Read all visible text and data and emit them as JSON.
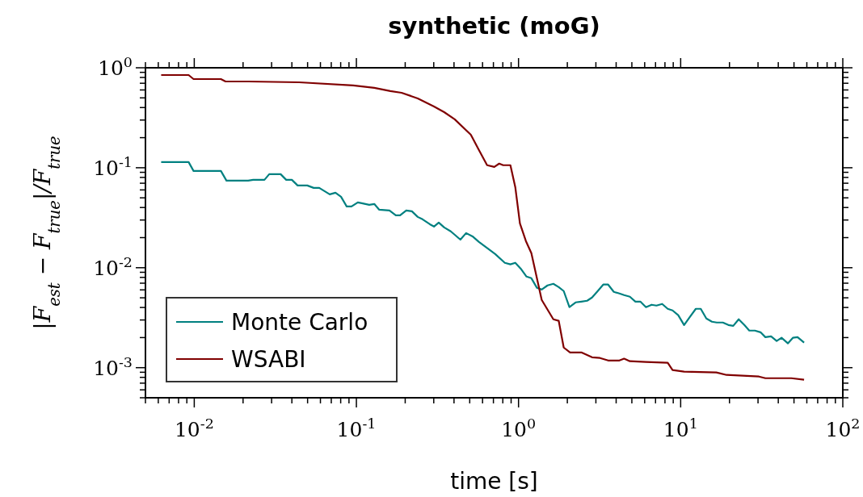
{
  "chart_data": {
    "type": "line",
    "title": "synthetic (moG)",
    "xlabel": "time [s]",
    "ylabel": "|F$_{est}$ − F$_{true}$|/F$_{true}$",
    "log": "xy",
    "grid": false,
    "legend": "bottom left",
    "line_style": "solid",
    "marker": "none",
    "xlim": [
      0.005,
      100
    ],
    "ylim": [
      0.0005,
      1
    ],
    "xticks": [
      {
        "value": 0.005,
        "label": null
      },
      {
        "value": 0.006,
        "label": null
      },
      {
        "value": 0.007,
        "label": null
      },
      {
        "value": 0.008,
        "label": null
      },
      {
        "value": 0.009,
        "label": null
      },
      {
        "value": 0.01,
        "label": "10$^{-2}$"
      },
      {
        "value": 0.02,
        "label": null
      },
      {
        "value": 0.03,
        "label": null
      },
      {
        "value": 0.04,
        "label": null
      },
      {
        "value": 0.05,
        "label": null
      },
      {
        "value": 0.06,
        "label": null
      },
      {
        "value": 0.07,
        "label": null
      },
      {
        "value": 0.08,
        "label": null
      },
      {
        "value": 0.09,
        "label": null
      },
      {
        "value": 0.1,
        "label": "10$^{-1}$"
      },
      {
        "value": 0.2,
        "label": null
      },
      {
        "value": 0.3,
        "label": null
      },
      {
        "value": 0.4,
        "label": null
      },
      {
        "value": 0.5,
        "label": null
      },
      {
        "value": 0.6,
        "label": null
      },
      {
        "value": 0.7,
        "label": null
      },
      {
        "value": 0.8,
        "label": null
      },
      {
        "value": 0.9,
        "label": null
      },
      {
        "value": 1,
        "label": "10$^{0}$"
      },
      {
        "value": 2,
        "label": null
      },
      {
        "value": 3,
        "label": null
      },
      {
        "value": 4,
        "label": null
      },
      {
        "value": 5,
        "label": null
      },
      {
        "value": 6,
        "label": null
      },
      {
        "value": 7,
        "label": null
      },
      {
        "value": 8,
        "label": null
      },
      {
        "value": 9,
        "label": null
      },
      {
        "value": 10,
        "label": "10$^{1}$"
      },
      {
        "value": 20,
        "label": null
      },
      {
        "value": 30,
        "label": null
      },
      {
        "value": 40,
        "label": null
      },
      {
        "value": 50,
        "label": null
      },
      {
        "value": 60,
        "label": null
      },
      {
        "value": 70,
        "label": null
      },
      {
        "value": 80,
        "label": null
      },
      {
        "value": 90,
        "label": null
      },
      {
        "value": 100,
        "label": "10$^{2}$"
      }
    ],
    "yticks": [
      {
        "value": 0.0005,
        "label": null
      },
      {
        "value": 0.0006,
        "label": null
      },
      {
        "value": 0.0007,
        "label": null
      },
      {
        "value": 0.0008,
        "label": null
      },
      {
        "value": 0.0009,
        "label": null
      },
      {
        "value": 0.001,
        "label": "10$^{-3}$"
      },
      {
        "value": 0.002,
        "label": null
      },
      {
        "value": 0.003,
        "label": null
      },
      {
        "value": 0.004,
        "label": null
      },
      {
        "value": 0.005,
        "label": null
      },
      {
        "value": 0.006,
        "label": null
      },
      {
        "value": 0.007,
        "label": null
      },
      {
        "value": 0.008,
        "label": null
      },
      {
        "value": 0.009,
        "label": null
      },
      {
        "value": 0.01,
        "label": "10$^{-2}$"
      },
      {
        "value": 0.02,
        "label": null
      },
      {
        "value": 0.03,
        "label": null
      },
      {
        "value": 0.04,
        "label": null
      },
      {
        "value": 0.05,
        "label": null
      },
      {
        "value": 0.06,
        "label": null
      },
      {
        "value": 0.07,
        "label": null
      },
      {
        "value": 0.08,
        "label": null
      },
      {
        "value": 0.09,
        "label": null
      },
      {
        "value": 0.1,
        "label": "10$^{-1}$"
      },
      {
        "value": 0.2,
        "label": null
      },
      {
        "value": 0.3,
        "label": null
      },
      {
        "value": 0.4,
        "label": null
      },
      {
        "value": 0.5,
        "label": null
      },
      {
        "value": 0.6,
        "label": null
      },
      {
        "value": 0.7,
        "label": null
      },
      {
        "value": 0.8,
        "label": null
      },
      {
        "value": 0.9,
        "label": null
      },
      {
        "value": 1,
        "label": "10$^{0}$"
      }
    ],
    "series": [
      {
        "name": "Monte Carlo",
        "color": "#008080",
        "x": [
          0.00625,
          0.00923,
          0.0099,
          0.0146,
          0.0158,
          0.0215,
          0.0231,
          0.0271,
          0.029,
          0.0341,
          0.0369,
          0.04,
          0.0434,
          0.0498,
          0.0545,
          0.059,
          0.0685,
          0.0743,
          0.0804,
          0.0871,
          0.0933,
          0.102,
          0.108,
          0.12,
          0.129,
          0.138,
          0.16,
          0.175,
          0.186,
          0.203,
          0.22,
          0.239,
          0.256,
          0.284,
          0.301,
          0.322,
          0.348,
          0.382,
          0.438,
          0.475,
          0.52,
          0.57,
          0.655,
          0.718,
          0.823,
          0.891,
          0.955,
          1.04,
          1.12,
          1.2,
          1.3,
          1.39,
          1.51,
          1.64,
          1.77,
          1.9,
          2.06,
          2.25,
          2.44,
          2.65,
          2.84,
          3.08,
          3.33,
          3.57,
          3.87,
          4.19,
          4.48,
          4.86,
          5.26,
          5.64,
          6.11,
          6.62,
          7.09,
          7.69,
          8.32,
          8.91,
          9.66,
          10.5,
          11.3,
          12.4,
          13.3,
          14.4,
          15.6,
          16.7,
          18.2,
          19.7,
          21.1,
          22.8,
          24.7,
          26.5,
          28.7,
          31.1,
          33.3,
          36.1,
          39.1,
          41.9,
          45.9,
          49.2,
          52.6,
          57.7
        ],
        "values": [
          0.114,
          0.114,
          0.0929,
          0.0929,
          0.0743,
          0.0743,
          0.0757,
          0.0757,
          0.0862,
          0.0862,
          0.0757,
          0.0757,
          0.0665,
          0.0665,
          0.0629,
          0.0629,
          0.0542,
          0.0562,
          0.0512,
          0.041,
          0.041,
          0.045,
          0.0442,
          0.0426,
          0.0434,
          0.0381,
          0.0374,
          0.0334,
          0.0334,
          0.0374,
          0.0367,
          0.0322,
          0.0305,
          0.0272,
          0.0258,
          0.0283,
          0.0253,
          0.0231,
          0.0191,
          0.0222,
          0.0206,
          0.0181,
          0.0153,
          0.0137,
          0.0112,
          0.0108,
          0.0112,
          0.00964,
          0.00815,
          0.00785,
          0.00628,
          0.00605,
          0.00665,
          0.0069,
          0.0064,
          0.00584,
          0.00403,
          0.0045,
          0.00458,
          0.00467,
          0.00503,
          0.00584,
          0.00678,
          0.00678,
          0.00573,
          0.00552,
          0.00532,
          0.00513,
          0.00458,
          0.00458,
          0.00403,
          0.00426,
          0.00418,
          0.00434,
          0.00388,
          0.00374,
          0.00335,
          0.00267,
          0.00316,
          0.00388,
          0.00388,
          0.0031,
          0.00288,
          0.00283,
          0.00283,
          0.00267,
          0.00262,
          0.00305,
          0.00267,
          0.00235,
          0.00235,
          0.00226,
          0.00202,
          0.00206,
          0.00185,
          0.00199,
          0.00175,
          0.00199,
          0.00202,
          0.00178
        ]
      },
      {
        "name": "WSABI",
        "color": "#800000",
        "x": [
          0.00625,
          0.00923,
          0.0099,
          0.0146,
          0.0156,
          0.0215,
          0.0443,
          0.0955,
          0.129,
          0.162,
          0.19,
          0.239,
          0.301,
          0.348,
          0.404,
          0.508,
          0.57,
          0.64,
          0.709,
          0.76,
          0.804,
          0.891,
          0.955,
          1.02,
          1.11,
          1.2,
          1.39,
          1.64,
          1.77,
          1.9,
          2.08,
          2.44,
          2.84,
          3.18,
          3.57,
          4.19,
          4.48,
          4.86,
          6.11,
          8.32,
          8.91,
          10.5,
          16.6,
          19.2,
          30.4,
          33.3,
          48.1,
          57.7
        ],
        "values": [
          0.846,
          0.846,
          0.771,
          0.771,
          0.729,
          0.729,
          0.716,
          0.665,
          0.629,
          0.584,
          0.562,
          0.494,
          0.41,
          0.36,
          0.305,
          0.214,
          0.15,
          0.106,
          0.102,
          0.11,
          0.106,
          0.106,
          0.064,
          0.0278,
          0.0185,
          0.014,
          0.00476,
          0.00305,
          0.00294,
          0.00159,
          0.00142,
          0.00142,
          0.00127,
          0.00125,
          0.00118,
          0.00118,
          0.00123,
          0.00116,
          0.00114,
          0.00112,
          0.000946,
          0.000912,
          0.000895,
          0.000846,
          0.000815,
          0.000785,
          0.000785,
          0.000757
        ]
      }
    ]
  }
}
